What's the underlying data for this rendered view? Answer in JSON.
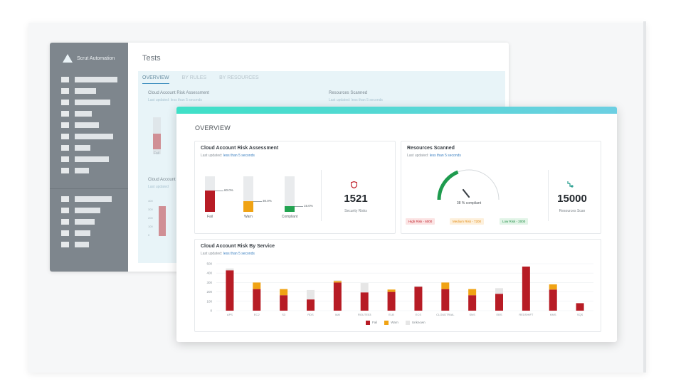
{
  "back_window": {
    "app_name": "Scrut Automation",
    "page_title": "Tests",
    "tabs": [
      "OVERVIEW",
      "BY RULES",
      "BY RESOURCES"
    ],
    "risk_title": "Cloud Account Risk Assessment",
    "risk_sub": "Last updated: less than 5 seconds",
    "resources_title": "Resources Scanned",
    "resources_sub": "Last updated: less than 5 seconds",
    "fail_label": "Fail",
    "service_title": "Cloud Account",
    "service_sub": "Last updated",
    "axis": [
      "400",
      "300",
      "200",
      "100",
      "0"
    ]
  },
  "front_window": {
    "title": "OVERVIEW",
    "risk_card": {
      "title": "Cloud Account Risk Assessment",
      "sub_prefix": "Last updated: ",
      "sub_value": "less than 5 seconds",
      "bars": [
        {
          "label": "Fail",
          "pct_text": "60.0%",
          "fraction": 0.6,
          "color": "#b71c25"
        },
        {
          "label": "Warn",
          "pct_text": "30.0%",
          "fraction": 0.3,
          "color": "#f0a314"
        },
        {
          "label": "Compliant",
          "pct_text": "15.0%",
          "fraction": 0.15,
          "color": "#22a350"
        }
      ],
      "metric_value": "1521",
      "metric_label": "Security Risks",
      "metric_icon": "shield-icon",
      "metric_icon_color": "#c0202a"
    },
    "resources_card": {
      "title": "Resources Scanned",
      "sub_prefix": "Last updated: ",
      "sub_value": "less than 5 seconds",
      "gauge_fraction": 0.38,
      "gauge_text": "38 % compliant",
      "pills": [
        {
          "text": "High Risk - 6000",
          "bg": "#fbe3e3",
          "fg": "#c0202a"
        },
        {
          "text": "Medium Risk - 7200",
          "bg": "#fdf0dc",
          "fg": "#e38b10"
        },
        {
          "text": "Low Risk - 2000",
          "bg": "#e2f4e7",
          "fg": "#1f8f45"
        }
      ],
      "metric_value": "15000",
      "metric_label": "Resources Scan",
      "metric_icon": "scan-icon",
      "metric_icon_color": "#1f9a8a"
    },
    "service_card": {
      "title": "Cloud Account Risk By Service",
      "sub_prefix": "Last updated: ",
      "sub_value": "less than 5 seconds"
    }
  },
  "chart_data": {
    "type": "bar",
    "stacked": true,
    "title": "Cloud Account Risk By Service",
    "categories": [
      "APS",
      "EC2",
      "S3",
      "RDS",
      "IAM",
      "ROUTE53",
      "ELB",
      "ECS",
      "CLOUDTRAIL",
      "SNS",
      "EBS",
      "REDSHIFT",
      "KMS",
      "SQS"
    ],
    "series": [
      {
        "name": "Fail",
        "color": "#b71c25",
        "values": [
          430,
          230,
          165,
          120,
          300,
          195,
          200,
          255,
          230,
          165,
          180,
          470,
          225,
          80
        ]
      },
      {
        "name": "Warn",
        "color": "#f0a314",
        "values": [
          0,
          70,
          65,
          0,
          15,
          0,
          25,
          0,
          70,
          65,
          0,
          0,
          55,
          0
        ]
      },
      {
        "name": "Unknown",
        "color": "#e6e6e6",
        "values": [
          20,
          0,
          0,
          100,
          10,
          100,
          0,
          10,
          0,
          0,
          60,
          0,
          0,
          0
        ]
      }
    ],
    "yticks": [
      "500",
      "400",
      "300",
      "200",
      "100",
      "0"
    ],
    "ylim": [
      0,
      500
    ],
    "legend": "bottom-center"
  }
}
